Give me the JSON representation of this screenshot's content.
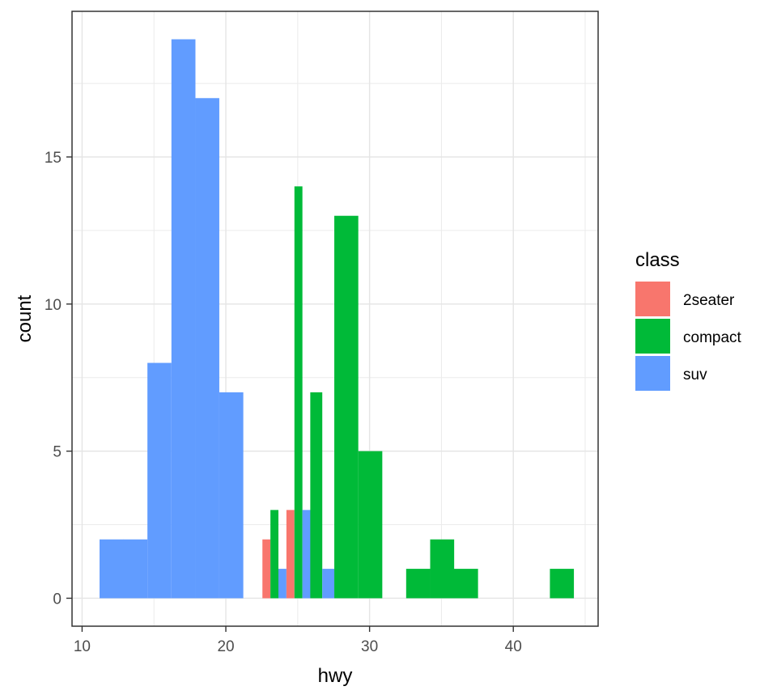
{
  "chart_data": {
    "type": "bar",
    "xlabel": "hwy",
    "ylabel": "count",
    "xlim": [
      9.3,
      45.9
    ],
    "ylim": [
      -0.95,
      19.95
    ],
    "xticks": [
      10,
      20,
      30,
      40
    ],
    "yticks": [
      0,
      5,
      10,
      15
    ],
    "grid": true,
    "legend": {
      "title": "class",
      "placement": "right"
    },
    "bin_width": 1.67,
    "series": [
      {
        "name": "2seater",
        "color": "#F8766D",
        "points": [
          {
            "x": 23.38,
            "y": 2
          },
          {
            "x": 25.05,
            "y": 3
          }
        ]
      },
      {
        "name": "compact",
        "color": "#00BA38",
        "points": [
          {
            "x": 23.38,
            "y": 3
          },
          {
            "x": 25.05,
            "y": 14
          },
          {
            "x": 26.71,
            "y": 7
          },
          {
            "x": 28.38,
            "y": 13
          },
          {
            "x": 30.05,
            "y": 5
          },
          {
            "x": 33.38,
            "y": 1
          },
          {
            "x": 35.05,
            "y": 2
          },
          {
            "x": 36.71,
            "y": 1
          },
          {
            "x": 43.38,
            "y": 1
          }
        ]
      },
      {
        "name": "suv",
        "color": "#619CFF",
        "points": [
          {
            "x": 12.05,
            "y": 2
          },
          {
            "x": 13.71,
            "y": 2
          },
          {
            "x": 15.38,
            "y": 8
          },
          {
            "x": 17.05,
            "y": 19
          },
          {
            "x": 18.71,
            "y": 17
          },
          {
            "x": 20.38,
            "y": 7
          },
          {
            "x": 23.38,
            "y": 1
          },
          {
            "x": 25.05,
            "y": 3
          },
          {
            "x": 26.71,
            "y": 1
          }
        ]
      }
    ]
  }
}
